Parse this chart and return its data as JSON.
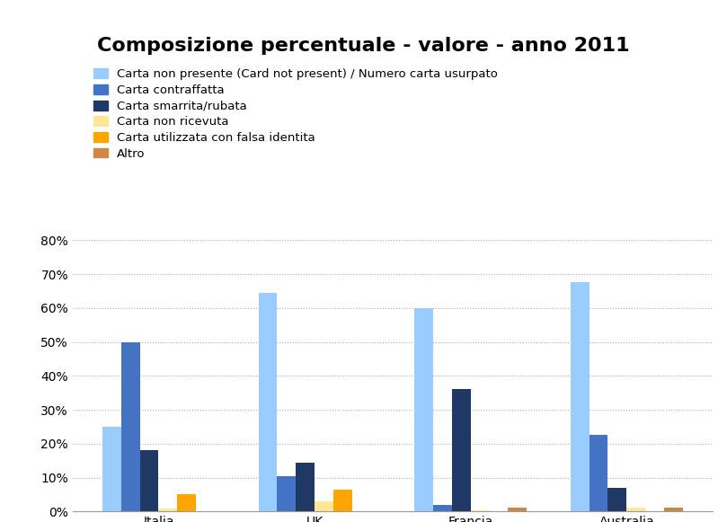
{
  "title": "Composizione percentuale - valore - anno 2011",
  "categories": [
    "Italia",
    "UK",
    "Francia",
    "Australia"
  ],
  "series": [
    {
      "label": "Carta non presente (Card not present) / Numero carta usurpato",
      "color": "#99ccff",
      "values": [
        0.25,
        0.645,
        0.6,
        0.675
      ]
    },
    {
      "label": "Carta contraffatta",
      "color": "#4472c4",
      "values": [
        0.5,
        0.105,
        0.02,
        0.225
      ]
    },
    {
      "label": "Carta smarrita/rubata",
      "color": "#1f3864",
      "values": [
        0.18,
        0.145,
        0.36,
        0.07
      ]
    },
    {
      "label": "Carta non ricevuta",
      "color": "#ffe699",
      "values": [
        0.01,
        0.03,
        0.004,
        0.012
      ]
    },
    {
      "label": "Carta utilizzata con falsa identita",
      "color": "#ffa500",
      "values": [
        0.05,
        0.065,
        0.0,
        0.0
      ]
    },
    {
      "label": "Altro",
      "color": "#cc8844",
      "values": [
        0.0,
        0.0,
        0.011,
        0.011
      ]
    }
  ],
  "ylim": [
    0,
    0.8
  ],
  "yticks": [
    0.0,
    0.1,
    0.2,
    0.3,
    0.4,
    0.5,
    0.6,
    0.7,
    0.8
  ],
  "ytick_labels": [
    "0%",
    "10%",
    "20%",
    "30%",
    "40%",
    "50%",
    "60%",
    "70%",
    "80%"
  ],
  "background_color": "#ffffff",
  "grid_color": "#aaaaaa",
  "title_fontsize": 16,
  "legend_fontsize": 9.5,
  "axis_fontsize": 10
}
